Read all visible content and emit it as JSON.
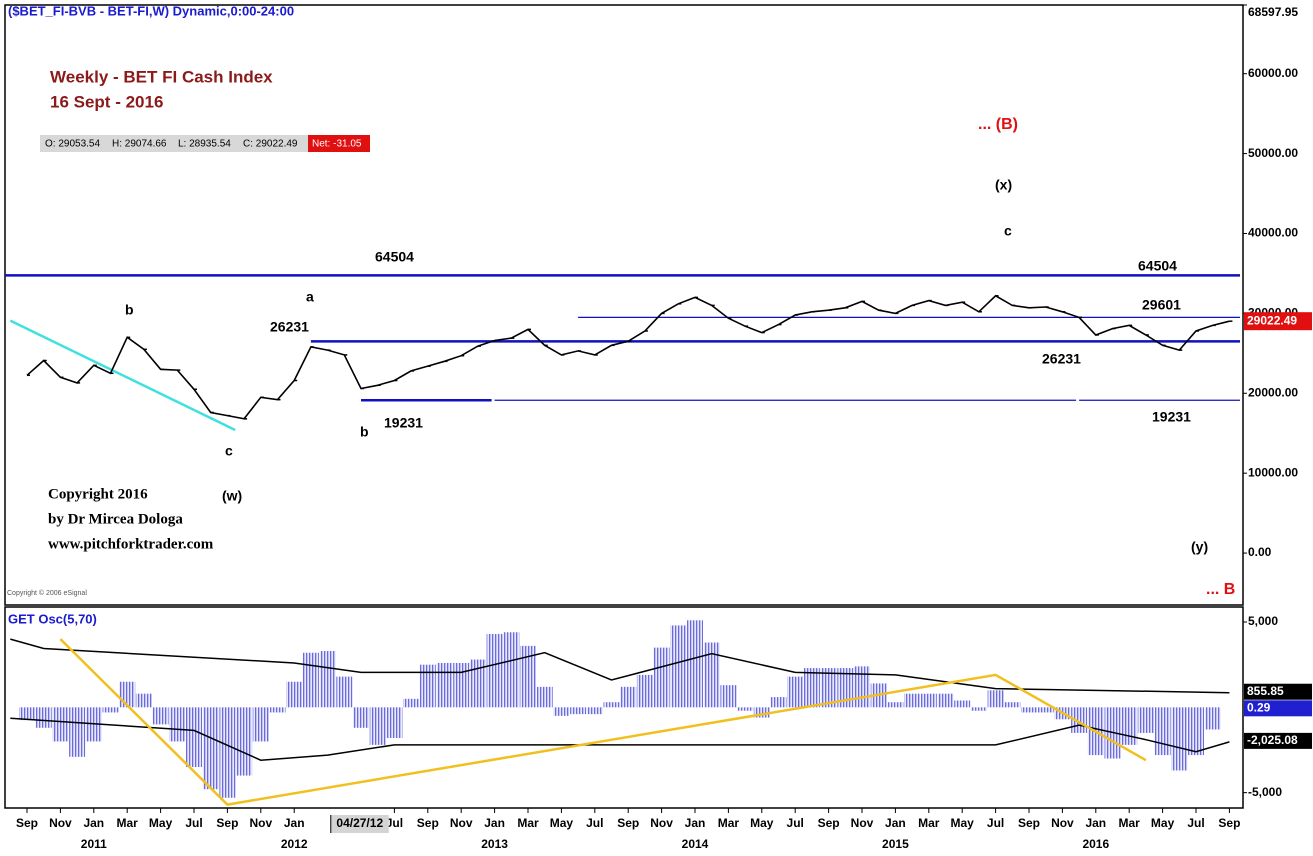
{
  "header": "($BET_FI-BVB - BET-FI,W) Dynamic,0:00-24:00",
  "ohlc": [
    "O: 29053.54",
    "H: 29074.66",
    "L: 28935.54",
    "C: 29022.49"
  ],
  "net": "Net: -31.05",
  "copyright": [
    "Copyright 2016",
    "by Dr Mircea Dologa",
    "www.pitchforktrader.com"
  ],
  "source": "Copyright © 2006 eSignal",
  "xaxis": {
    "ticks": [
      {
        "value": "2010-09",
        "label": "Sep"
      },
      {
        "value": "2010-11",
        "label": "Nov"
      },
      {
        "value": "2011-01",
        "label": "Jan"
      },
      {
        "value": "2011-03",
        "label": "Mar"
      },
      {
        "value": "2011-05",
        "label": "May"
      },
      {
        "value": "2011-07",
        "label": "Jul"
      },
      {
        "value": "2011-09",
        "label": "Sep"
      },
      {
        "value": "2011-11",
        "label": "Nov"
      },
      {
        "value": "2012-01",
        "label": "Jan"
      },
      {
        "value": "2012-07",
        "label": "Jul"
      },
      {
        "value": "2012-09",
        "label": "Sep"
      },
      {
        "value": "2012-11",
        "label": "Nov"
      },
      {
        "value": "2013-01",
        "label": "Jan"
      },
      {
        "value": "2013-03",
        "label": "Mar"
      },
      {
        "value": "2013-05",
        "label": "May"
      },
      {
        "value": "2013-07",
        "label": "Jul"
      },
      {
        "value": "2013-09",
        "label": "Sep"
      },
      {
        "value": "2013-11",
        "label": "Nov"
      },
      {
        "value": "2014-01",
        "label": "Jan"
      },
      {
        "value": "2014-03",
        "label": "Mar"
      },
      {
        "value": "2014-05",
        "label": "May"
      },
      {
        "value": "2014-07",
        "label": "Jul"
      },
      {
        "value": "2014-09",
        "label": "Sep"
      },
      {
        "value": "2014-11",
        "label": "Nov"
      },
      {
        "value": "2015-01",
        "label": "Jan"
      },
      {
        "value": "2015-03",
        "label": "Mar"
      },
      {
        "value": "2015-05",
        "label": "May"
      },
      {
        "value": "2015-07",
        "label": "Jul"
      },
      {
        "value": "2015-09",
        "label": "Sep"
      },
      {
        "value": "2015-11",
        "label": "Nov"
      },
      {
        "value": "2016-01",
        "label": "Jan"
      },
      {
        "value": "2016-03",
        "label": "Mar"
      },
      {
        "value": "2016-05",
        "label": "May"
      },
      {
        "value": "2016-07",
        "label": "Jul"
      },
      {
        "value": "2016-09",
        "label": "Sep"
      }
    ],
    "years": [
      {
        "value": "2011-01",
        "label": "2011"
      },
      {
        "value": "2012-01",
        "label": "2012"
      },
      {
        "value": "2013-01",
        "label": "2013"
      },
      {
        "value": "2014-01",
        "label": "2014"
      },
      {
        "value": "2015-01",
        "label": "2015"
      },
      {
        "value": "2016-01",
        "label": "2016"
      }
    ],
    "cursor": {
      "value": "2012-04-27",
      "label": "04/27/12"
    }
  },
  "chart_data": [
    {
      "type": "line",
      "title": "Weekly - BET FI Cash Index",
      "subtitle": "16 Sept -  2016",
      "color": "#000000",
      "x": [
        "2010-09",
        "2010-10",
        "2010-11",
        "2010-12",
        "2011-01",
        "2011-02",
        "2011-03",
        "2011-04",
        "2011-05",
        "2011-06",
        "2011-07",
        "2011-08",
        "2011-09",
        "2011-10",
        "2011-11",
        "2011-12",
        "2012-01",
        "2012-02",
        "2012-03",
        "2012-04",
        "2012-05",
        "2012-06",
        "2012-07",
        "2012-08",
        "2012-09",
        "2012-10",
        "2012-11",
        "2012-12",
        "2013-01",
        "2013-02",
        "2013-03",
        "2013-04",
        "2013-05",
        "2013-06",
        "2013-07",
        "2013-08",
        "2013-09",
        "2013-10",
        "2013-11",
        "2013-12",
        "2014-01",
        "2014-02",
        "2014-03",
        "2014-04",
        "2014-05",
        "2014-06",
        "2014-07",
        "2014-08",
        "2014-09",
        "2014-10",
        "2014-11",
        "2014-12",
        "2015-01",
        "2015-02",
        "2015-03",
        "2015-04",
        "2015-05",
        "2015-06",
        "2015-07",
        "2015-08",
        "2015-09",
        "2015-10",
        "2015-11",
        "2015-12",
        "2016-01",
        "2016-02",
        "2016-03",
        "2016-04",
        "2016-05",
        "2016-06",
        "2016-07",
        "2016-08",
        "2016-09"
      ],
      "values": [
        22250,
        24100,
        22000,
        21300,
        23500,
        22500,
        27000,
        25500,
        23000,
        22900,
        20500,
        17600,
        17200,
        16800,
        19500,
        19200,
        21600,
        25800,
        25400,
        24800,
        20600,
        21000,
        21600,
        22800,
        23400,
        24000,
        24700,
        25900,
        26600,
        26900,
        28000,
        26000,
        24800,
        25300,
        24800,
        26000,
        26500,
        27800,
        30000,
        31200,
        32000,
        31000,
        29400,
        28400,
        27600,
        28600,
        29800,
        30200,
        30400,
        30700,
        31500,
        30400,
        30000,
        31000,
        31600,
        31000,
        31400,
        30200,
        32200,
        31000,
        30700,
        30800,
        30200,
        29500,
        27300,
        28100,
        28500,
        27300,
        26000,
        25400,
        27800,
        28500,
        29022.49
      ],
      "last_label": "29022.49",
      "ylim": [
        -6500,
        68597.95
      ],
      "yticks": [
        {
          "value": 0,
          "label": "0.00"
        },
        {
          "value": 10000,
          "label": "10000.00"
        },
        {
          "value": 20000,
          "label": "20000.00"
        },
        {
          "value": 30000,
          "label": "30000.00"
        },
        {
          "value": 40000,
          "label": "40000.00"
        },
        {
          "value": 50000,
          "label": "50000.00"
        },
        {
          "value": 60000,
          "label": "60000.00"
        },
        {
          "value": 68597.95,
          "label": "68597.95"
        }
      ],
      "levels": [
        {
          "value": 34750,
          "color": "#1010c0"
        },
        {
          "value": 26500,
          "from": "2012-02",
          "color": "#1010c0"
        },
        {
          "value": 29500,
          "from": "2013-06",
          "color": "#1010c0"
        },
        {
          "value": 19125,
          "from": "2012-05",
          "to": "2013-01",
          "color": "#1010c0"
        },
        {
          "value": 19125,
          "from": "2013-01",
          "to": "2015-12",
          "color": "#1010c0"
        },
        {
          "value": 19125,
          "from": "2015-12",
          "color": "#1010c0"
        }
      ],
      "trendline": {
        "color": "#40e0e0",
        "points": [
          {
            "x": "2010-08",
            "y": 29100
          },
          {
            "x": "2011-09-15",
            "y": 15400
          }
        ]
      },
      "annotations": [
        "... (B)",
        "(x)",
        "c",
        "64504",
        "64504",
        "a",
        "b",
        "26231",
        "29601",
        "26231",
        "b",
        "19231",
        "19231",
        "c",
        "(w)",
        "(y)",
        "... B"
      ]
    },
    {
      "type": "bar",
      "title": "GET Osc(5,70)",
      "color": "#7a7ae0",
      "x": [
        "2010-09",
        "2010-10",
        "2010-11",
        "2010-12",
        "2011-01",
        "2011-02",
        "2011-03",
        "2011-04",
        "2011-05",
        "2011-06",
        "2011-07",
        "2011-08",
        "2011-09",
        "2011-10",
        "2011-11",
        "2011-12",
        "2012-01",
        "2012-02",
        "2012-03",
        "2012-04",
        "2012-05",
        "2012-06",
        "2012-07",
        "2012-08",
        "2012-09",
        "2012-10",
        "2012-11",
        "2012-12",
        "2013-01",
        "2013-02",
        "2013-03",
        "2013-04",
        "2013-05",
        "2013-06",
        "2013-07",
        "2013-08",
        "2013-09",
        "2013-10",
        "2013-11",
        "2013-12",
        "2014-01",
        "2014-02",
        "2014-03",
        "2014-04",
        "2014-05",
        "2014-06",
        "2014-07",
        "2014-08",
        "2014-09",
        "2014-10",
        "2014-11",
        "2014-12",
        "2015-01",
        "2015-02",
        "2015-03",
        "2015-04",
        "2015-05",
        "2015-06",
        "2015-07",
        "2015-08",
        "2015-09",
        "2015-10",
        "2015-11",
        "2015-12",
        "2016-01",
        "2016-02",
        "2016-03",
        "2016-04",
        "2016-05",
        "2016-06",
        "2016-07",
        "2016-08",
        "2016-09"
      ],
      "values": [
        -750,
        -1200,
        -2000,
        -2900,
        -2000,
        -300,
        1500,
        800,
        -1000,
        -2000,
        -3500,
        -4800,
        -5300,
        -4000,
        -2000,
        -300,
        1500,
        3200,
        3300,
        1800,
        -1200,
        -2200,
        -1800,
        500,
        2500,
        2600,
        2600,
        2800,
        4300,
        4400,
        3600,
        1200,
        -500,
        -400,
        -400,
        300,
        1200,
        1900,
        3500,
        4800,
        5100,
        3800,
        1300,
        -200,
        -600,
        600,
        1800,
        2300,
        2300,
        2300,
        2400,
        1400,
        300,
        800,
        800,
        800,
        400,
        -200,
        1000,
        300,
        -300,
        -300,
        -700,
        -1500,
        -2800,
        -3000,
        -2200,
        -1500,
        -2800,
        -3700,
        -2800,
        -1300,
        0.29
      ],
      "ylim": [
        -5900,
        5880
      ],
      "yticks": [
        {
          "value": 5000,
          "label": "5,000"
        },
        {
          "value": -5000,
          "label": "-5,000"
        }
      ],
      "lines": [
        {
          "color": "#000000",
          "x": [
            "2010-08",
            "2010-10",
            "2012-01",
            "2012-05",
            "2012-11",
            "2013-04",
            "2013-08",
            "2014-02",
            "2014-07",
            "2015-01",
            "2015-07",
            "2016-09"
          ],
          "values": [
            4000,
            3450,
            2600,
            2050,
            2050,
            3200,
            1600,
            3150,
            2050,
            1900,
            1100,
            855.85
          ]
        },
        {
          "color": "#000000",
          "x": [
            "2010-08",
            "2011-07",
            "2011-11",
            "2012-03",
            "2012-07",
            "2015-07",
            "2015-12",
            "2016-04",
            "2016-07",
            "2016-09"
          ],
          "values": [
            -640,
            -1350,
            -3100,
            -2800,
            -2200,
            -2200,
            -1050,
            -1900,
            -2600,
            -2025.08
          ]
        }
      ],
      "trendline": {
        "color": "#f0c020",
        "points": [
          {
            "x": "2010-11",
            "y": 4000
          },
          {
            "x": "2011-09",
            "y": -5700
          },
          {
            "x": "2015-07",
            "y": 1900
          },
          {
            "x": "2016-04",
            "y": -3100
          }
        ]
      },
      "current_labels": [
        {
          "value": 855.85,
          "label": "855.85",
          "color": "#000000"
        },
        {
          "value": 0.29,
          "label": "0.29",
          "color": "#2020d0"
        },
        {
          "value": -2025.08,
          "label": "-2,025.08",
          "color": "#000000"
        }
      ]
    }
  ]
}
